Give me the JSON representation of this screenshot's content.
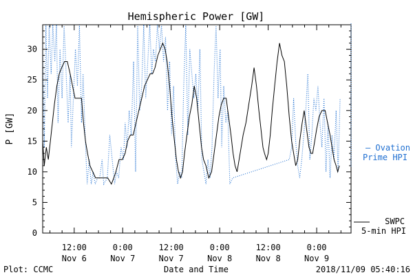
{
  "chart_data": {
    "type": "line",
    "title": "Hemispheric Power [GW]",
    "ylabel": "P [GW]",
    "xlabel": "Date and Time",
    "ylim": [
      0,
      34
    ],
    "y_ticks": [
      0,
      5,
      10,
      15,
      20,
      25,
      30
    ],
    "x_ticks": [
      {
        "label1": "12:00",
        "label2": "Nov 6",
        "t": 12
      },
      {
        "label1": "0:00",
        "label2": "Nov 7",
        "t": 24
      },
      {
        "label1": "12:00",
        "label2": "Nov 7",
        "t": 36
      },
      {
        "label1": "0:00",
        "label2": "Nov 8",
        "t": 48
      },
      {
        "label1": "12:00",
        "label2": "Nov 8",
        "t": 60
      },
      {
        "label1": "0:00",
        "label2": "Nov 9",
        "t": 72
      }
    ],
    "x_unit": "hours since Nov 6 0:00",
    "xlim": [
      4.2,
      80.5
    ],
    "grid": false,
    "legend_position": "right",
    "series": [
      {
        "name": "SWPC 5-min HPI",
        "legend_lines": [
          "SWPC",
          "5-min HPI"
        ],
        "color": "#000000",
        "style": "solid",
        "points": [
          [
            4.2,
            15
          ],
          [
            4.6,
            11
          ],
          [
            5.1,
            14
          ],
          [
            5.6,
            12
          ],
          [
            6.1,
            15
          ],
          [
            6.6,
            18
          ],
          [
            7.1,
            21
          ],
          [
            7.7,
            24
          ],
          [
            8.3,
            26
          ],
          [
            8.9,
            27
          ],
          [
            9.6,
            28
          ],
          [
            10.3,
            28
          ],
          [
            11.0,
            26
          ],
          [
            11.6,
            24
          ],
          [
            12.2,
            22
          ],
          [
            13.0,
            22
          ],
          [
            13.8,
            22
          ],
          [
            14.3,
            18
          ],
          [
            14.8,
            15
          ],
          [
            15.3,
            13
          ],
          [
            15.9,
            11
          ],
          [
            16.6,
            10
          ],
          [
            17.3,
            9
          ],
          [
            18.3,
            9
          ],
          [
            19.3,
            9
          ],
          [
            20.3,
            9
          ],
          [
            21.2,
            8
          ],
          [
            21.8,
            9
          ],
          [
            22.3,
            10
          ],
          [
            23.1,
            12
          ],
          [
            23.9,
            12
          ],
          [
            24.6,
            13
          ],
          [
            25.2,
            15
          ],
          [
            25.9,
            16
          ],
          [
            26.6,
            16
          ],
          [
            27.3,
            18
          ],
          [
            28.0,
            20
          ],
          [
            28.7,
            22
          ],
          [
            29.4,
            24
          ],
          [
            30.1,
            25
          ],
          [
            30.8,
            26
          ],
          [
            31.4,
            26
          ],
          [
            32.0,
            27
          ],
          [
            32.7,
            29
          ],
          [
            33.3,
            30
          ],
          [
            33.9,
            31
          ],
          [
            34.5,
            30
          ],
          [
            35.0,
            28
          ],
          [
            35.6,
            24
          ],
          [
            36.2,
            19
          ],
          [
            36.8,
            15
          ],
          [
            37.3,
            12
          ],
          [
            37.8,
            10
          ],
          [
            38.3,
            9
          ],
          [
            38.8,
            10
          ],
          [
            39.3,
            13
          ],
          [
            39.9,
            16
          ],
          [
            40.5,
            19
          ],
          [
            41.1,
            21
          ],
          [
            41.7,
            24
          ],
          [
            42.3,
            22
          ],
          [
            42.9,
            18
          ],
          [
            43.5,
            14
          ],
          [
            44.0,
            12
          ],
          [
            44.6,
            11
          ],
          [
            45.3,
            9
          ],
          [
            46.0,
            10
          ],
          [
            46.6,
            13
          ],
          [
            47.2,
            16
          ],
          [
            47.8,
            19
          ],
          [
            48.4,
            21
          ],
          [
            49.0,
            22
          ],
          [
            49.6,
            22
          ],
          [
            50.2,
            19
          ],
          [
            50.8,
            16
          ],
          [
            51.3,
            13
          ],
          [
            51.8,
            11
          ],
          [
            52.3,
            10
          ],
          [
            52.8,
            12
          ],
          [
            53.3,
            14
          ],
          [
            53.8,
            16
          ],
          [
            54.5,
            18
          ],
          [
            55.2,
            21
          ],
          [
            55.9,
            24
          ],
          [
            56.5,
            27
          ],
          [
            57.1,
            24
          ],
          [
            57.7,
            20
          ],
          [
            58.2,
            17
          ],
          [
            58.7,
            14
          ],
          [
            59.1,
            13
          ],
          [
            59.6,
            12
          ],
          [
            60.0,
            13
          ],
          [
            60.5,
            16
          ],
          [
            61.0,
            20
          ],
          [
            61.6,
            24
          ],
          [
            62.2,
            28
          ],
          [
            62.8,
            31
          ],
          [
            63.4,
            29
          ],
          [
            64.0,
            28
          ],
          [
            64.6,
            24
          ],
          [
            65.2,
            19
          ],
          [
            65.8,
            15
          ],
          [
            66.3,
            13
          ],
          [
            66.8,
            11
          ],
          [
            67.3,
            12
          ],
          [
            67.8,
            15
          ],
          [
            68.4,
            18
          ],
          [
            68.9,
            20
          ],
          [
            69.5,
            17
          ],
          [
            70.1,
            14
          ],
          [
            70.6,
            13
          ],
          [
            71.0,
            13
          ],
          [
            71.5,
            15
          ],
          [
            72.0,
            17
          ],
          [
            72.6,
            19
          ],
          [
            73.3,
            20
          ],
          [
            74.1,
            20
          ],
          [
            74.7,
            18
          ],
          [
            75.3,
            16
          ],
          [
            75.8,
            14
          ],
          [
            76.3,
            12
          ],
          [
            76.8,
            11
          ],
          [
            77.2,
            10
          ],
          [
            77.6,
            11
          ]
        ]
      },
      {
        "name": "Ovation Prime HPI",
        "legend_lines": [
          "– Ovation",
          "Prime HPI"
        ],
        "color": "#1f6fd1",
        "style": "dotted",
        "points": [
          [
            4.2,
            30
          ],
          [
            4.6,
            14
          ],
          [
            5.0,
            34
          ],
          [
            5.4,
            22
          ],
          [
            5.8,
            34
          ],
          [
            6.3,
            26
          ],
          [
            6.7,
            34
          ],
          [
            7.2,
            28
          ],
          [
            7.6,
            34
          ],
          [
            8.0,
            18
          ],
          [
            8.5,
            30
          ],
          [
            9.0,
            22
          ],
          [
            9.5,
            34
          ],
          [
            10.0,
            26
          ],
          [
            10.5,
            18
          ],
          [
            11.0,
            26
          ],
          [
            11.3,
            14
          ],
          [
            11.8,
            22
          ],
          [
            12.3,
            30
          ],
          [
            12.8,
            24
          ],
          [
            13.3,
            34
          ],
          [
            13.8,
            18
          ],
          [
            14.2,
            26
          ],
          [
            14.7,
            16
          ],
          [
            15.2,
            8
          ],
          [
            15.7,
            12
          ],
          [
            16.2,
            8
          ],
          [
            16.7,
            10
          ],
          [
            17.2,
            8
          ],
          [
            17.8,
            9
          ],
          [
            18.3,
            9
          ],
          [
            18.9,
            12
          ],
          [
            19.3,
            8
          ],
          [
            20.2,
            9
          ],
          [
            20.8,
            16
          ],
          [
            21.4,
            12
          ],
          [
            22.0,
            8
          ],
          [
            22.5,
            10
          ],
          [
            23.0,
            9
          ],
          [
            23.6,
            14
          ],
          [
            24.2,
            12
          ],
          [
            24.6,
            18
          ],
          [
            25.1,
            14
          ],
          [
            25.6,
            20
          ],
          [
            26.1,
            16
          ],
          [
            26.7,
            28
          ],
          [
            27.2,
            10
          ],
          [
            27.7,
            34
          ],
          [
            28.2,
            20
          ],
          [
            28.7,
            24
          ],
          [
            29.2,
            34
          ],
          [
            29.7,
            22
          ],
          [
            30.2,
            28
          ],
          [
            30.7,
            34
          ],
          [
            31.2,
            26
          ],
          [
            31.6,
            30
          ],
          [
            32.1,
            28
          ],
          [
            32.6,
            34
          ],
          [
            33.1,
            30
          ],
          [
            33.6,
            34
          ],
          [
            34.1,
            28
          ],
          [
            34.6,
            32
          ],
          [
            35.1,
            20
          ],
          [
            35.6,
            28
          ],
          [
            36.1,
            16
          ],
          [
            36.6,
            24
          ],
          [
            37.1,
            12
          ],
          [
            37.6,
            8
          ],
          [
            38.1,
            10
          ],
          [
            38.6,
            9
          ],
          [
            39.1,
            24
          ],
          [
            39.6,
            34
          ],
          [
            40.1,
            16
          ],
          [
            40.6,
            30
          ],
          [
            41.1,
            26
          ],
          [
            41.6,
            22
          ],
          [
            42.1,
            26
          ],
          [
            42.6,
            20
          ],
          [
            43.1,
            30
          ],
          [
            43.6,
            12
          ],
          [
            44.1,
            10
          ],
          [
            44.6,
            8
          ],
          [
            45.1,
            12
          ],
          [
            45.6,
            9
          ],
          [
            46.1,
            14
          ],
          [
            46.6,
            26
          ],
          [
            47.1,
            34
          ],
          [
            47.6,
            22
          ],
          [
            48.1,
            30
          ],
          [
            48.5,
            14
          ],
          [
            49.0,
            24
          ],
          [
            49.5,
            18
          ],
          [
            50.0,
            20
          ],
          [
            50.5,
            8
          ],
          [
            51.2,
            9
          ],
          [
            65.2,
            12
          ],
          [
            65.8,
            14
          ],
          [
            66.3,
            22
          ],
          [
            66.8,
            15
          ],
          [
            67.3,
            11
          ],
          [
            67.8,
            9
          ],
          [
            68.3,
            12
          ],
          [
            68.8,
            16
          ],
          [
            69.3,
            20
          ],
          [
            69.8,
            26
          ],
          [
            70.3,
            12
          ],
          [
            70.8,
            16
          ],
          [
            71.3,
            22
          ],
          [
            71.8,
            20
          ],
          [
            72.3,
            24
          ],
          [
            72.8,
            18
          ],
          [
            73.3,
            14
          ],
          [
            73.8,
            22
          ],
          [
            74.3,
            10
          ],
          [
            74.8,
            18
          ],
          [
            75.3,
            9
          ],
          [
            75.8,
            16
          ],
          [
            76.3,
            12
          ],
          [
            76.8,
            20
          ],
          [
            77.3,
            10
          ],
          [
            77.8,
            22
          ]
        ]
      }
    ]
  },
  "footer": {
    "left": "Plot: CCMC",
    "right": "2018/11/09 05:40:16"
  }
}
